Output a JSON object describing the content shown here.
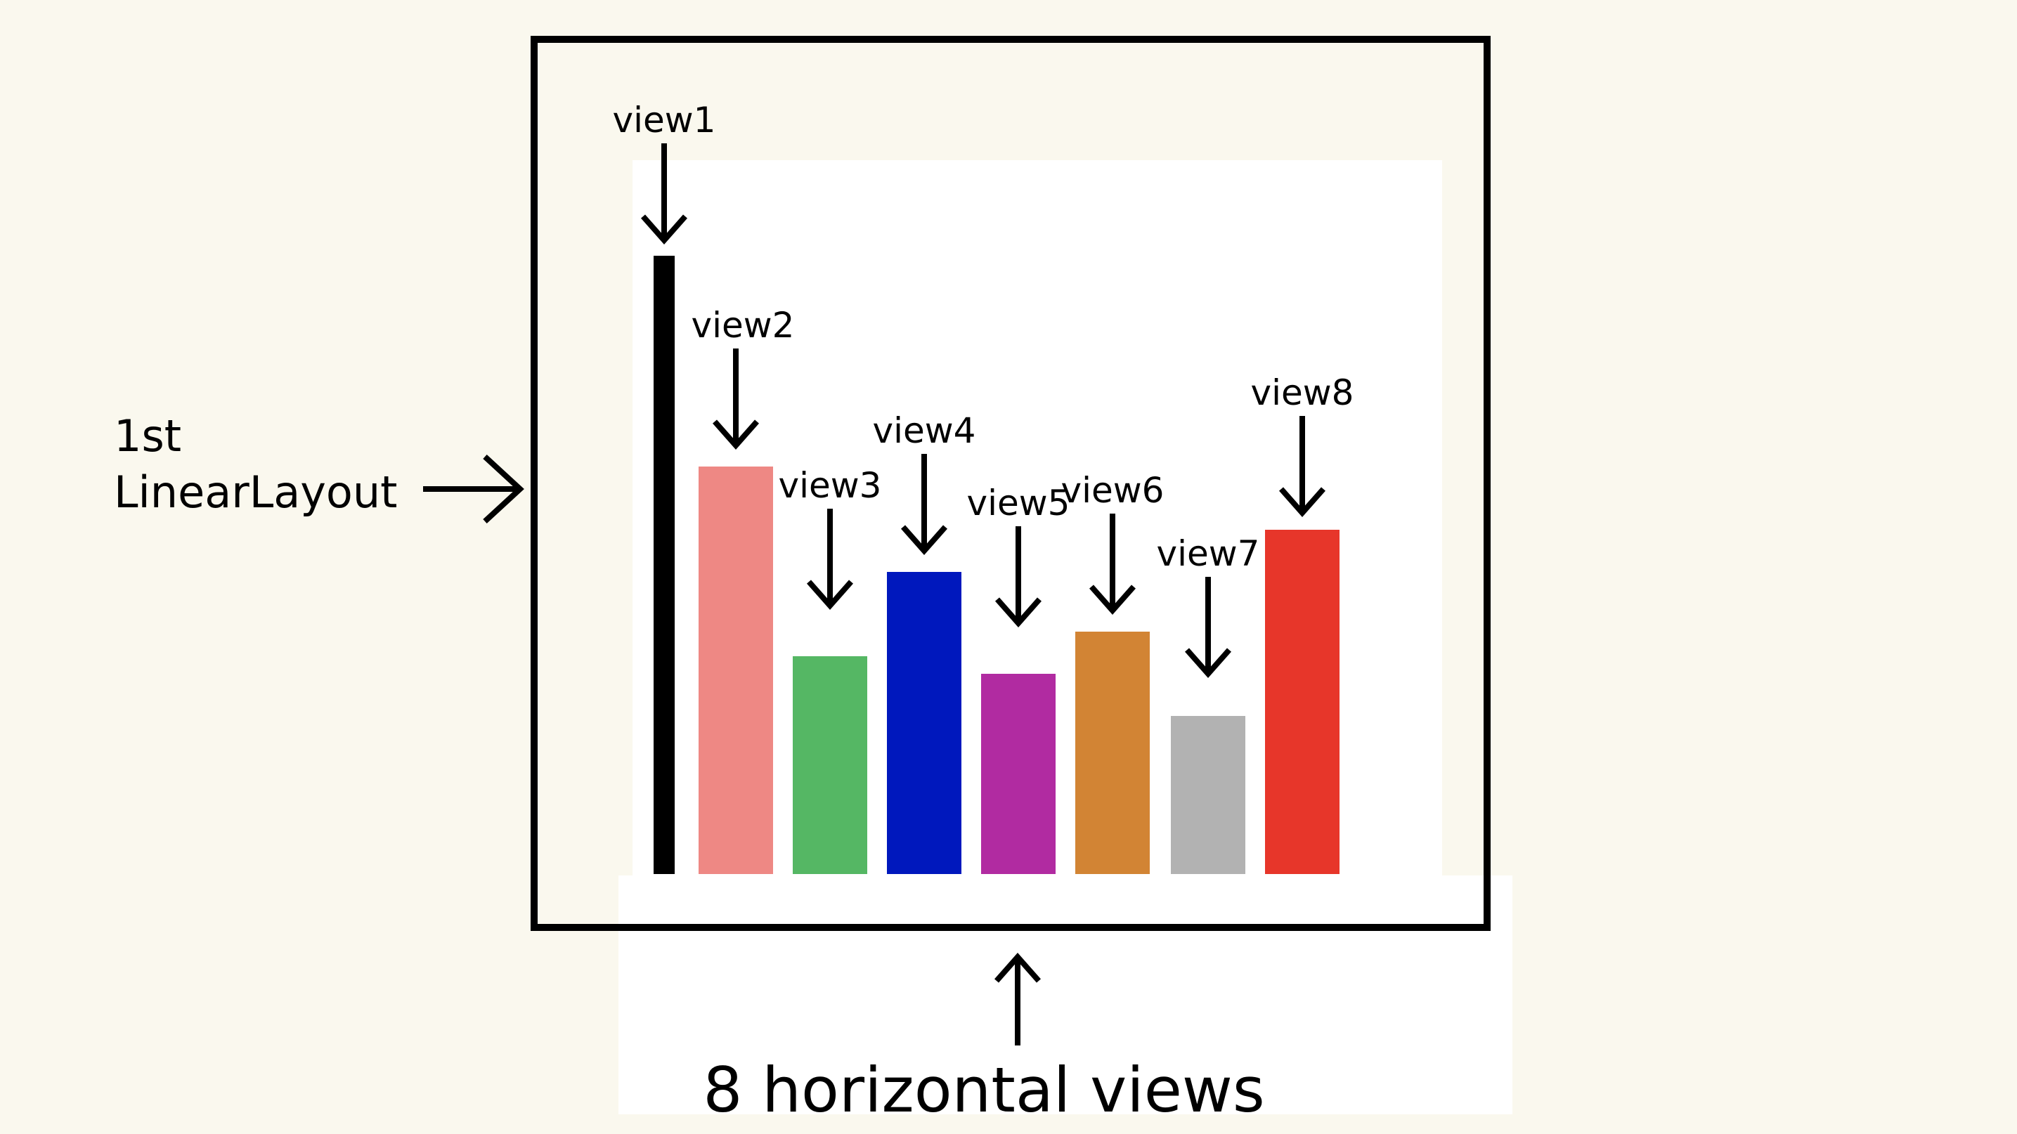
{
  "diagram": {
    "layout_label_line1": "1st",
    "layout_label_line2": "LinearLayout",
    "bottom_caption": "8 horizontal views",
    "views": [
      {
        "label": "view1",
        "color": "#000000",
        "height_fraction": 0.88
      },
      {
        "label": "view2",
        "color": "#ee8884",
        "height_fraction": 0.58
      },
      {
        "label": "view3",
        "color": "#55b764",
        "height_fraction": 0.31
      },
      {
        "label": "view4",
        "color": "#0018bd",
        "height_fraction": 0.43
      },
      {
        "label": "view5",
        "color": "#b12ba1",
        "height_fraction": 0.285
      },
      {
        "label": "view6",
        "color": "#d28434",
        "height_fraction": 0.345
      },
      {
        "label": "view7",
        "color": "#b2b2b2",
        "height_fraction": 0.225
      },
      {
        "label": "view8",
        "color": "#e7362a",
        "height_fraction": 0.49
      }
    ]
  }
}
